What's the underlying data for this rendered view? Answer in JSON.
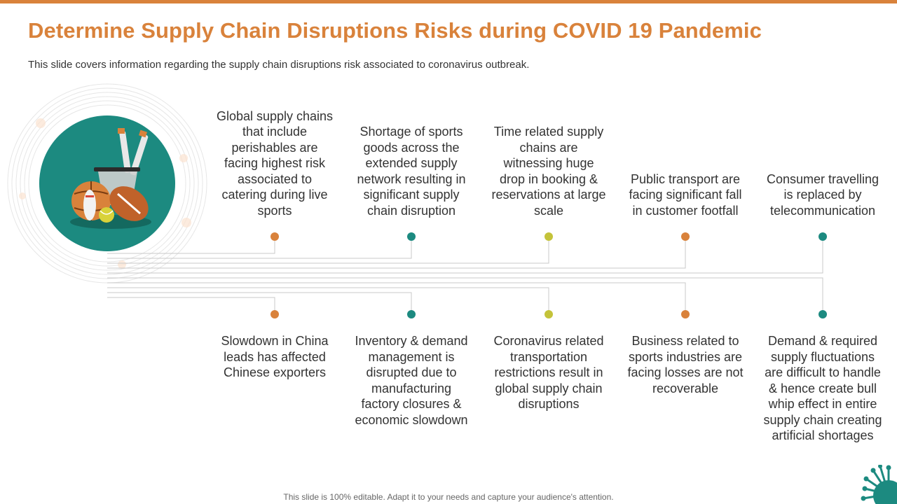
{
  "title": "Determine Supply Chain Disruptions Risks during COVID 19 Pandemic",
  "subtitle": "This slide covers information regarding the supply chain disruptions risk associated to coronavirus outbreak.",
  "colors": {
    "accent": "#d9823b",
    "teal": "#1c8a80",
    "olive": "#c4c33a",
    "line": "#c8c8c8"
  },
  "hero_icon": "sports-equipment-illustration",
  "top_items": [
    {
      "text": "Global supply chains that include perishables are facing highest risk associated to catering during live sports",
      "dot_color": "#d9823b"
    },
    {
      "text": "Shortage of sports goods across the extended supply network resulting in significant supply chain disruption",
      "dot_color": "#1c8a80"
    },
    {
      "text": "Time related supply chains are witnessing huge drop in booking & reservations at large scale",
      "dot_color": "#c4c33a"
    },
    {
      "text": "Public transport are facing significant fall in customer footfall",
      "dot_color": "#d9823b"
    },
    {
      "text": "Consumer travelling is replaced by telecommunication",
      "dot_color": "#1c8a80"
    }
  ],
  "bottom_items": [
    {
      "text": "Slowdown in China leads has affected Chinese exporters",
      "dot_color": "#d9823b"
    },
    {
      "text": "Inventory & demand management is disrupted due to manufacturing factory closures & economic slowdown",
      "dot_color": "#1c8a80"
    },
    {
      "text": "Coronavirus related transportation restrictions result in global supply chain disruptions",
      "dot_color": "#c4c33a"
    },
    {
      "text": "Business related to sports industries are facing losses are not recoverable",
      "dot_color": "#d9823b"
    },
    {
      "text": "Demand & required supply fluctuations are difficult to handle & hence create bull whip effect in entire supply chain creating artificial shortages",
      "dot_color": "#1c8a80"
    }
  ],
  "footer": "This slide is 100% editable. Adapt it to your needs and capture your audience's attention."
}
